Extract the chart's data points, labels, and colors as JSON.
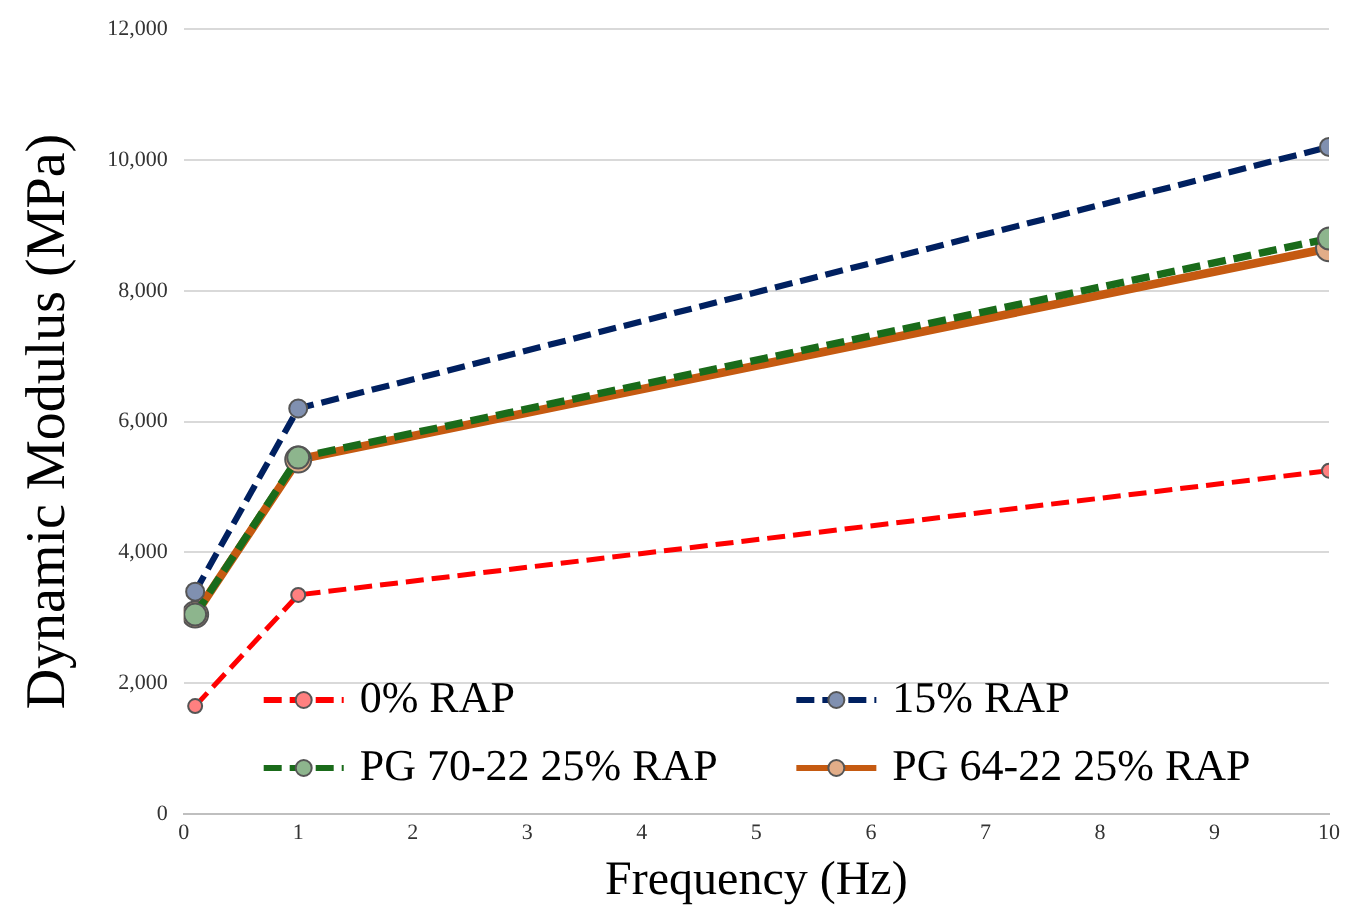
{
  "chart_data": {
    "type": "line",
    "xlabel": "Frequency (Hz)",
    "ylabel": "Dynamic Modulus (MPa)",
    "x": [
      0.1,
      1,
      10
    ],
    "series": [
      {
        "name": "0% RAP",
        "color": "#ff0000",
        "values": [
          1650,
          3350,
          5250
        ],
        "line_style": "dashed"
      },
      {
        "name": "15% RAP",
        "color": "#002060",
        "values": [
          3400,
          6200,
          10200
        ],
        "line_style": "dashed"
      },
      {
        "name": "PG 70-22 25% RAP",
        "color": "#1a6b1a",
        "values": [
          3050,
          5450,
          8800
        ],
        "line_style": "dashed"
      },
      {
        "name": "PG 64-22 25% RAP",
        "color": "#c55a11",
        "values": [
          3050,
          5420,
          8650
        ],
        "line_style": "solid"
      }
    ],
    "xlim": [
      0,
      10
    ],
    "xticks": [
      0,
      1,
      2,
      3,
      4,
      5,
      6,
      7,
      8,
      9,
      10
    ],
    "ylim": [
      0,
      12000
    ],
    "yticks": [
      {
        "value": 0,
        "label": "0"
      },
      {
        "value": 2000,
        "label": "2,000"
      },
      {
        "value": 4000,
        "label": "4,000"
      },
      {
        "value": 6000,
        "label": "6,000"
      },
      {
        "value": 8000,
        "label": "8,000"
      },
      {
        "value": 10000,
        "label": "10,000"
      },
      {
        "value": 12000,
        "label": "12,000"
      }
    ],
    "grid": "y",
    "legend": "bottom",
    "marker": "circle"
  }
}
